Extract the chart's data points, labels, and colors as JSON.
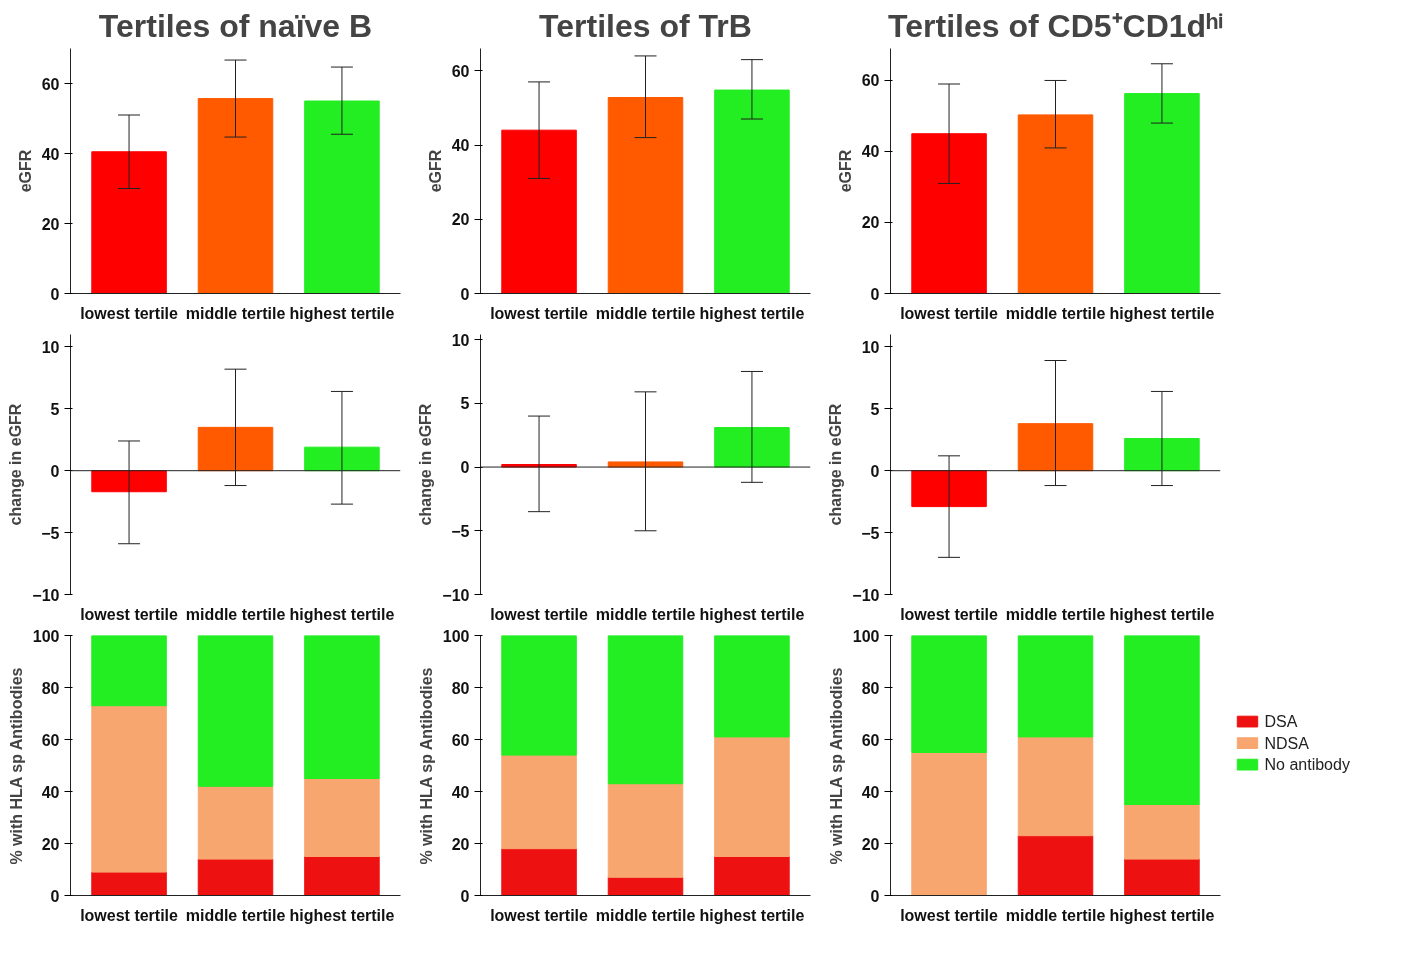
{
  "chart_data": [
    {
      "type": "bar",
      "title": "Tertiles of naïve B",
      "ylabel": "eGFR",
      "categories": [
        "lowest tertile",
        "middle tertile",
        "highest tertile"
      ],
      "values": [
        40.5,
        55.7,
        55
      ],
      "colors": [
        "#ff0000",
        "#ff5a00",
        "#22ee22"
      ],
      "errors": [
        [
          30,
          51
        ],
        [
          44.7,
          66.7
        ],
        [
          45.5,
          64.7
        ]
      ],
      "ylim": [
        0,
        70
      ],
      "yticks": [
        0,
        20,
        40,
        60
      ],
      "grid": false,
      "legend": false
    },
    {
      "type": "bar",
      "title": "Tertiles of TrB",
      "ylabel": "eGFR",
      "categories": [
        "lowest tertile",
        "middle tertile",
        "highest tertile"
      ],
      "values": [
        44,
        52.8,
        54.8
      ],
      "colors": [
        "#ff0000",
        "#ff5a00",
        "#22ee22"
      ],
      "errors": [
        [
          31,
          57
        ],
        [
          42,
          64
        ],
        [
          47,
          63
        ]
      ],
      "ylim": [
        0,
        66
      ],
      "yticks": [
        0,
        20,
        40,
        60
      ],
      "grid": false,
      "legend": false
    },
    {
      "type": "bar",
      "title": "Tertiles of CD5⁺CD1dʰⁱ",
      "ylabel": "eGFR",
      "categories": [
        "lowest tertile",
        "middle tertile",
        "highest tertile"
      ],
      "values": [
        45,
        50.3,
        56.3
      ],
      "colors": [
        "#ff0000",
        "#ff5a00",
        "#22ee22"
      ],
      "errors": [
        [
          31,
          59
        ],
        [
          41,
          60
        ],
        [
          48,
          64.7
        ]
      ],
      "ylim": [
        0,
        69
      ],
      "yticks": [
        0,
        20,
        40,
        60
      ],
      "grid": false,
      "legend": false
    },
    {
      "type": "bar",
      "ylabel": "change in eGFR",
      "categories": [
        "lowest tertile",
        "middle tertile",
        "highest tertile"
      ],
      "values": [
        -1.7,
        3.5,
        1.9
      ],
      "colors": [
        "#ff0000",
        "#ff5a00",
        "#22ee22"
      ],
      "errors": [
        [
          -5.9,
          2.4
        ],
        [
          -1.2,
          8.2
        ],
        [
          -2.7,
          6.4
        ]
      ],
      "ylim": [
        -10,
        11
      ],
      "yticks": [
        -10,
        -5,
        0,
        5,
        10
      ],
      "ref_lines": [
        {
          "axis": "y",
          "value": 0
        }
      ],
      "grid": false,
      "legend": false
    },
    {
      "type": "bar",
      "ylabel": "change in eGFR",
      "categories": [
        "lowest tertile",
        "middle tertile",
        "highest tertile"
      ],
      "values": [
        0.2,
        0.4,
        3.1
      ],
      "colors": [
        "#ff0000",
        "#ff5a00",
        "#22ee22"
      ],
      "errors": [
        [
          -3.5,
          4
        ],
        [
          -5,
          5.9
        ],
        [
          -1.2,
          7.5
        ]
      ],
      "ylim": [
        -10,
        10.4
      ],
      "yticks": [
        -10,
        -5,
        0,
        5,
        10
      ],
      "ref_lines": [
        {
          "axis": "y",
          "value": 0
        }
      ],
      "grid": false,
      "legend": false
    },
    {
      "type": "bar",
      "ylabel": "change in eGFR",
      "categories": [
        "lowest tertile",
        "middle tertile",
        "highest tertile"
      ],
      "values": [
        -2.9,
        3.8,
        2.6
      ],
      "colors": [
        "#ff0000",
        "#ff5a00",
        "#22ee22"
      ],
      "errors": [
        [
          -7,
          1.2
        ],
        [
          -1.2,
          8.9
        ],
        [
          -1.2,
          6.4
        ]
      ],
      "ylim": [
        -10,
        11
      ],
      "yticks": [
        -10,
        -5,
        0,
        5,
        10
      ],
      "ref_lines": [
        {
          "axis": "y",
          "value": 0
        }
      ],
      "grid": false,
      "legend": false
    },
    {
      "type": "bar",
      "stacked": true,
      "ylabel": "% with HLA sp Antibodies",
      "categories": [
        "lowest tertile",
        "middle tertile",
        "highest tertile"
      ],
      "series": [
        {
          "color": "#ee1111",
          "values": [
            9,
            14,
            15
          ]
        },
        {
          "color": "#f8a670",
          "values": [
            64,
            28,
            30
          ]
        },
        {
          "color": "#22ee22",
          "values": [
            27,
            58,
            55
          ]
        }
      ],
      "ylim": [
        0,
        100
      ],
      "yticks": [
        0,
        20,
        40,
        60,
        80,
        100
      ],
      "grid": false,
      "legend": false
    },
    {
      "type": "bar",
      "stacked": true,
      "ylabel": "% with HLA sp Antibodies",
      "categories": [
        "lowest tertile",
        "middle tertile",
        "highest tertile"
      ],
      "series": [
        {
          "color": "#ee1111",
          "values": [
            18,
            7,
            15
          ]
        },
        {
          "color": "#f8a670",
          "values": [
            36,
            36,
            46
          ]
        },
        {
          "color": "#22ee22",
          "values": [
            46,
            57,
            39
          ]
        }
      ],
      "ylim": [
        0,
        100
      ],
      "yticks": [
        0,
        20,
        40,
        60,
        80,
        100
      ],
      "grid": false,
      "legend": false
    },
    {
      "type": "bar",
      "stacked": true,
      "ylabel": "% with HLA sp Antibodies",
      "categories": [
        "lowest tertile",
        "middle tertile",
        "highest tertile"
      ],
      "series": [
        {
          "name": "DSA",
          "color": "#ee1111",
          "values": [
            0,
            23,
            14
          ]
        },
        {
          "name": "NDSA",
          "color": "#f8a670",
          "values": [
            55,
            38,
            21
          ]
        },
        {
          "name": "No antibody",
          "color": "#22ee22",
          "values": [
            45,
            39,
            65
          ]
        }
      ],
      "ylim": [
        0,
        100
      ],
      "yticks": [
        0,
        20,
        40,
        60,
        80,
        100
      ],
      "grid": false,
      "legend": "right"
    }
  ]
}
